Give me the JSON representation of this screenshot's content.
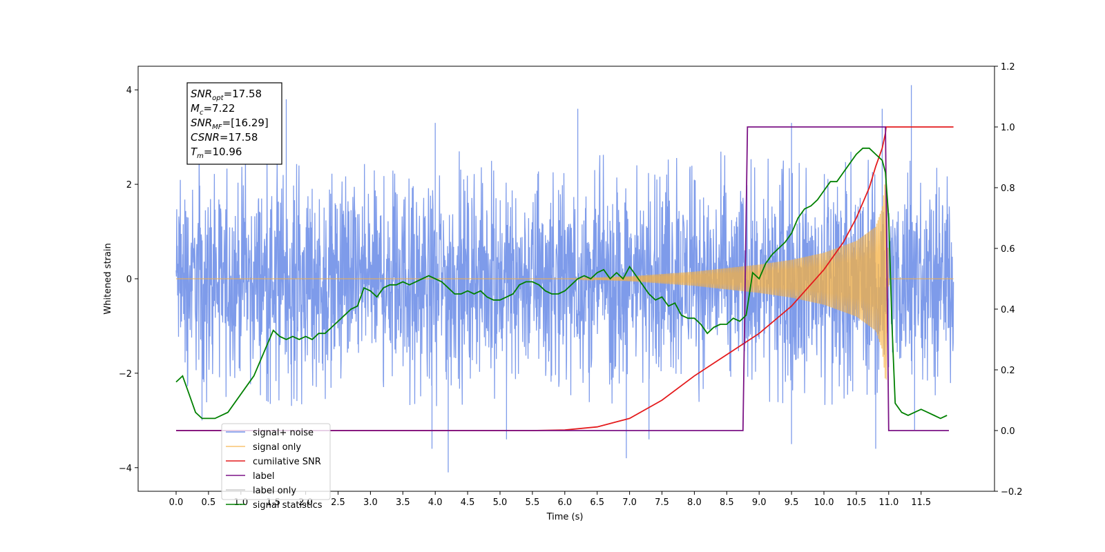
{
  "chart_data": {
    "type": "line",
    "title": "",
    "xlabel": "Time (s)",
    "ylabel": "Whitened strain",
    "xlim": [
      -0.6,
      12.47
    ],
    "ylim": [
      -4.5,
      4.5
    ],
    "y2lim": [
      -0.2,
      1.2
    ],
    "x_ticks": [
      0.0,
      0.5,
      1.0,
      1.5,
      2.0,
      2.5,
      3.0,
      3.5,
      4.0,
      4.5,
      5.0,
      5.5,
      6.0,
      6.5,
      7.0,
      7.5,
      8.0,
      8.5,
      9.0,
      9.5,
      10.0,
      10.5,
      11.0,
      11.5
    ],
    "x_tick_labels": [
      "0.0",
      "0.5",
      "1.0",
      "1.5",
      "2.0",
      "2.5",
      "3.0",
      "3.5",
      "4.0",
      "4.5",
      "5.0",
      "5.5",
      "6.0",
      "6.5",
      "7.0",
      "7.5",
      "8.0",
      "8.5",
      "9.0",
      "9.5",
      "10.0",
      "10.5",
      "11.0",
      "11.5"
    ],
    "y_ticks": [
      4,
      2,
      0,
      -2,
      -4
    ],
    "y_tick_labels": [
      "4",
      "2",
      "0",
      "−2",
      "−4"
    ],
    "y2_ticks": [
      1.2,
      1.0,
      0.8,
      0.6,
      0.4,
      0.2,
      0.0,
      -0.2
    ],
    "y2_tick_labels": [
      "1.2",
      "1.0",
      "0.8",
      "0.6",
      "0.4",
      "0.2",
      "0.0",
      "−0.2"
    ],
    "grid": false,
    "legend_position": "lower-left",
    "annotation": {
      "lines": [
        {
          "base": "SNR",
          "sub": "opt",
          "rest": "=17.58"
        },
        {
          "base": "M",
          "sub": "c",
          "rest": "=7.22"
        },
        {
          "base": "SNR",
          "sub": "MF",
          "rest": "=[16.29]"
        },
        {
          "base": "CSNR",
          "sub": "",
          "rest": "=17.58"
        },
        {
          "base": "T",
          "sub": "m",
          "rest": "=10.96"
        }
      ]
    },
    "series": [
      {
        "name": "signal+ noise",
        "axis": "left",
        "color": "#7090e8",
        "description": "noisy whitened strain, roughly ±2.2 with spikes up to about 4.1",
        "noise_start": 0.0,
        "noise_end": 12.0,
        "spikes": [
          [
            1.7,
            3.8
          ],
          [
            4.0,
            3.3
          ],
          [
            6.2,
            3.6
          ],
          [
            9.5,
            3.3
          ],
          [
            10.9,
            3.6
          ],
          [
            11.35,
            4.1
          ],
          [
            4.2,
            -4.1
          ],
          [
            3.95,
            -3.6
          ],
          [
            5.1,
            -3.4
          ],
          [
            6.95,
            -3.8
          ],
          [
            7.3,
            -3.4
          ],
          [
            9.5,
            -3.5
          ],
          [
            10.8,
            -3.6
          ],
          [
            0.4,
            -3.0
          ],
          [
            11.4,
            -3.2
          ]
        ]
      },
      {
        "name": "signal only",
        "axis": "left",
        "color": "#f5b041",
        "description": "chirp amplitude envelope",
        "envelope": {
          "x": [
            0.0,
            6.0,
            7.0,
            8.0,
            9.0,
            9.5,
            10.0,
            10.5,
            10.8,
            10.9,
            10.96,
            11.0,
            12.0
          ],
          "amp": [
            0.0,
            0.0,
            0.05,
            0.15,
            0.3,
            0.4,
            0.55,
            0.8,
            1.1,
            1.5,
            2.3,
            0.0,
            0.0
          ]
        }
      },
      {
        "name": "cumilative SNR",
        "axis": "right",
        "color": "#e41a1c",
        "x": [
          0.0,
          5.5,
          6.0,
          6.5,
          7.0,
          7.5,
          8.0,
          8.5,
          9.0,
          9.5,
          10.0,
          10.3,
          10.5,
          10.7,
          10.8,
          10.9,
          10.95,
          10.96,
          12.0
        ],
        "y": [
          0.0,
          0.0,
          0.002,
          0.012,
          0.04,
          0.1,
          0.18,
          0.25,
          0.32,
          0.41,
          0.53,
          0.62,
          0.7,
          0.8,
          0.87,
          0.93,
          0.98,
          1.0,
          1.0
        ]
      },
      {
        "name": "label",
        "axis": "right",
        "color": "#7b1285",
        "x": [
          0.0,
          8.75,
          8.82,
          10.88,
          10.95,
          11.0,
          11.93
        ],
        "y": [
          0.0,
          0.0,
          1.0,
          1.0,
          1.0,
          0.0,
          0.0
        ]
      },
      {
        "name": "label only",
        "axis": "right",
        "color": "#cccccc",
        "x": [],
        "y": []
      },
      {
        "name": "signal statistics",
        "axis": "right",
        "color": "#008000",
        "x": [
          0.0,
          0.1,
          0.2,
          0.3,
          0.4,
          0.5,
          0.6,
          0.8,
          1.0,
          1.2,
          1.4,
          1.5,
          1.6,
          1.7,
          1.8,
          1.9,
          2.0,
          2.1,
          2.2,
          2.3,
          2.4,
          2.5,
          2.6,
          2.7,
          2.8,
          2.9,
          3.0,
          3.1,
          3.2,
          3.3,
          3.4,
          3.5,
          3.6,
          3.7,
          3.8,
          3.9,
          4.0,
          4.1,
          4.2,
          4.3,
          4.4,
          4.5,
          4.6,
          4.7,
          4.8,
          4.9,
          5.0,
          5.1,
          5.2,
          5.3,
          5.4,
          5.5,
          5.6,
          5.7,
          5.8,
          5.9,
          6.0,
          6.1,
          6.2,
          6.3,
          6.4,
          6.5,
          6.6,
          6.7,
          6.8,
          6.9,
          7.0,
          7.1,
          7.2,
          7.3,
          7.4,
          7.5,
          7.6,
          7.7,
          7.8,
          7.9,
          8.0,
          8.1,
          8.2,
          8.3,
          8.4,
          8.5,
          8.6,
          8.7,
          8.8,
          8.9,
          9.0,
          9.1,
          9.2,
          9.3,
          9.4,
          9.5,
          9.6,
          9.7,
          9.8,
          9.9,
          10.0,
          10.1,
          10.2,
          10.3,
          10.4,
          10.5,
          10.6,
          10.7,
          10.8,
          10.9,
          10.95,
          11.0,
          11.05,
          11.1,
          11.2,
          11.3,
          11.4,
          11.5,
          11.6,
          11.7,
          11.8,
          11.9
        ],
        "y": [
          0.16,
          0.18,
          0.12,
          0.06,
          0.04,
          0.04,
          0.04,
          0.06,
          0.12,
          0.18,
          0.28,
          0.33,
          0.31,
          0.3,
          0.31,
          0.3,
          0.31,
          0.3,
          0.32,
          0.32,
          0.34,
          0.36,
          0.38,
          0.4,
          0.41,
          0.47,
          0.46,
          0.44,
          0.47,
          0.48,
          0.48,
          0.49,
          0.48,
          0.49,
          0.5,
          0.51,
          0.5,
          0.49,
          0.47,
          0.45,
          0.45,
          0.46,
          0.45,
          0.46,
          0.44,
          0.43,
          0.43,
          0.44,
          0.45,
          0.48,
          0.49,
          0.49,
          0.48,
          0.46,
          0.45,
          0.45,
          0.46,
          0.48,
          0.5,
          0.51,
          0.5,
          0.52,
          0.53,
          0.5,
          0.52,
          0.5,
          0.54,
          0.51,
          0.48,
          0.45,
          0.43,
          0.44,
          0.41,
          0.42,
          0.38,
          0.37,
          0.37,
          0.35,
          0.32,
          0.34,
          0.35,
          0.35,
          0.37,
          0.36,
          0.38,
          0.52,
          0.5,
          0.55,
          0.58,
          0.6,
          0.62,
          0.65,
          0.7,
          0.73,
          0.74,
          0.76,
          0.79,
          0.82,
          0.82,
          0.85,
          0.88,
          0.91,
          0.93,
          0.93,
          0.91,
          0.89,
          0.85,
          0.7,
          0.35,
          0.09,
          0.06,
          0.05,
          0.06,
          0.07,
          0.06,
          0.05,
          0.04,
          0.05
        ]
      }
    ]
  }
}
